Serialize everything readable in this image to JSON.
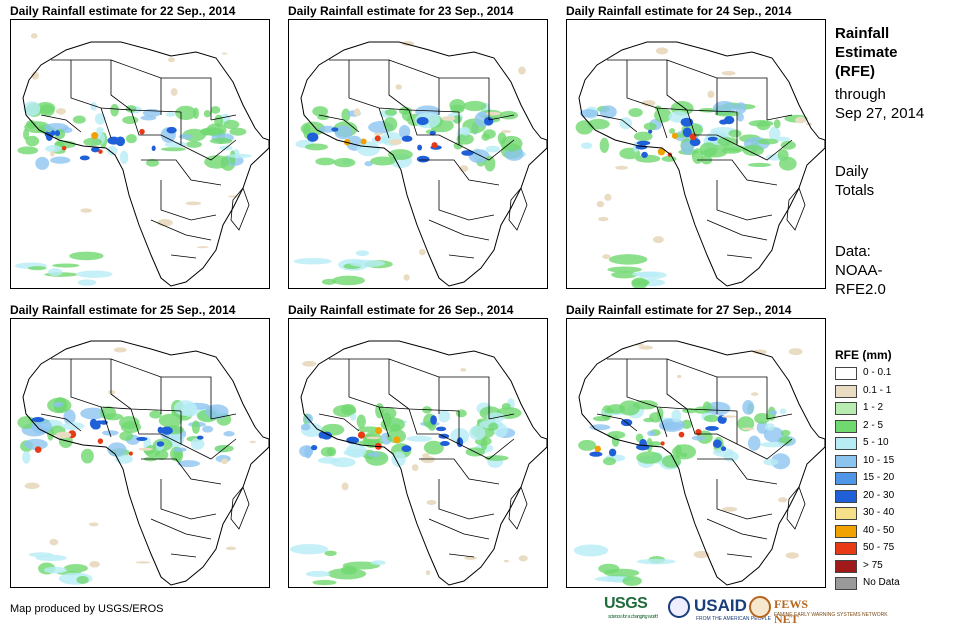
{
  "panels": [
    {
      "title": "Daily Rainfall estimate for 22 Sep., 2014"
    },
    {
      "title": "Daily Rainfall estimate for 23 Sep., 2014"
    },
    {
      "title": "Daily Rainfall estimate for 24 Sep., 2014"
    },
    {
      "title": "Daily Rainfall estimate for 25 Sep., 2014"
    },
    {
      "title": "Daily Rainfall estimate for 26 Sep., 2014"
    },
    {
      "title": "Daily Rainfall estimate for 27 Sep., 2014"
    }
  ],
  "sidebar": {
    "title_lines": [
      "Rainfall",
      "Estimate",
      "(RFE)"
    ],
    "through": "through",
    "through_date": "Sep 27, 2014",
    "totals_lines": [
      "Daily",
      "Totals"
    ],
    "data_lines": [
      "Data:",
      "NOAA-",
      "RFE2.0"
    ]
  },
  "legend": {
    "title": "RFE (mm)",
    "items": [
      {
        "label": "0 - 0.1",
        "color": "#ffffff"
      },
      {
        "label": "0.1 - 1",
        "color": "#eadcc3"
      },
      {
        "label": "1 - 2",
        "color": "#b9ecb0"
      },
      {
        "label": "2 - 5",
        "color": "#6fd86f"
      },
      {
        "label": "5 - 10",
        "color": "#b8ecf5"
      },
      {
        "label": "10 - 15",
        "color": "#8cc4f0"
      },
      {
        "label": "15 - 20",
        "color": "#4f95e8"
      },
      {
        "label": "20 - 30",
        "color": "#1f5fd8"
      },
      {
        "label": "30 - 40",
        "color": "#f7e08a"
      },
      {
        "label": "40 - 50",
        "color": "#f0a200"
      },
      {
        "label": "50 - 75",
        "color": "#e83a14"
      },
      {
        "label": "> 75",
        "color": "#a11a1a"
      },
      {
        "label": "No Data",
        "color": "#9a9a9a"
      }
    ]
  },
  "footer": {
    "credit": "Map produced by USGS/EROS"
  },
  "logos": {
    "usgs": "USGS",
    "usgs_tagline": "science for a changing world",
    "usaid": "USAID",
    "usaid_tagline": "FROM THE AMERICAN PEOPLE",
    "fews": "FEWS NET",
    "fews_tagline": "FAMINE EARLY WARNING SYSTEMS NETWORK"
  }
}
